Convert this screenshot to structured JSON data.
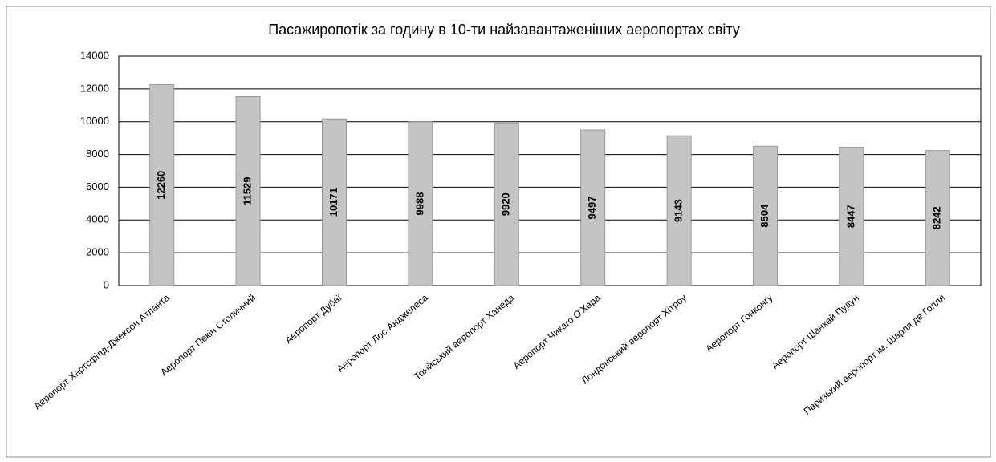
{
  "chart_data": {
    "type": "bar",
    "title": "Пасажиропотік за годину в 10-ти найзавантаженіших аеропортах світу",
    "categories": [
      "Аеропорт Хартсфілд-Джексон Атланта",
      "Аеропорт Пекін Столичний",
      "Аеропорт Дубаї",
      "Аеропорт Лос-Анджелеса",
      "Токійський аеропорт Ханеда",
      "Аеропорт Чикаго О'Хара",
      "Лондонський аеропорт Хітроу",
      "Аеропорт Гонконгу",
      "Аеропорт Шанхай Пудун",
      "Паризький аеропорт ім. Шарля де Голля"
    ],
    "values": [
      12260,
      11529,
      10171,
      9988,
      9920,
      9497,
      9143,
      8504,
      8447,
      8242
    ],
    "color": "#c4c4c4",
    "ylim": [
      0,
      14000
    ],
    "yticks": [
      0,
      2000,
      4000,
      6000,
      8000,
      10000,
      12000,
      14000
    ],
    "grid": true
  }
}
